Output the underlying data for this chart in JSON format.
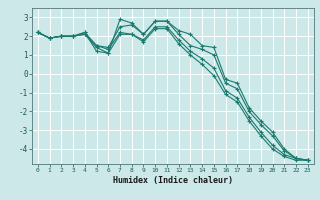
{
  "xlabel": "Humidex (Indice chaleur)",
  "bg_color": "#cce8e8",
  "line_color": "#1a7a6e",
  "grid_color": "#ffffff",
  "series": [
    [
      2.2,
      1.9,
      2.0,
      2.0,
      2.2,
      1.2,
      1.1,
      2.9,
      2.7,
      2.1,
      2.8,
      2.8,
      2.3,
      2.1,
      1.5,
      1.4,
      -0.3,
      -0.5,
      -1.8,
      -2.5,
      -3.1,
      -4.0,
      -4.5,
      -4.6
    ],
    [
      2.2,
      1.9,
      2.0,
      2.0,
      2.2,
      1.5,
      1.4,
      2.5,
      2.6,
      2.1,
      2.8,
      2.8,
      2.1,
      1.5,
      1.3,
      1.0,
      -0.5,
      -0.8,
      -2.0,
      -2.7,
      -3.3,
      -4.1,
      -4.5,
      -4.6
    ],
    [
      2.2,
      1.9,
      2.0,
      2.0,
      2.1,
      1.5,
      1.3,
      2.2,
      2.1,
      1.8,
      2.5,
      2.5,
      1.8,
      1.2,
      0.8,
      0.3,
      -0.9,
      -1.3,
      -2.3,
      -3.1,
      -3.8,
      -4.3,
      -4.5,
      -4.6
    ],
    [
      2.2,
      1.9,
      2.0,
      2.0,
      2.1,
      1.4,
      1.1,
      2.1,
      2.1,
      1.7,
      2.4,
      2.4,
      1.6,
      1.0,
      0.5,
      -0.1,
      -1.1,
      -1.5,
      -2.5,
      -3.3,
      -4.0,
      -4.4,
      -4.6,
      -4.6
    ]
  ],
  "xlim": [
    -0.5,
    23.5
  ],
  "ylim": [
    -4.8,
    3.5
  ],
  "yticks": [
    -4,
    -3,
    -2,
    -1,
    0,
    1,
    2,
    3
  ],
  "xticks": [
    0,
    1,
    2,
    3,
    4,
    5,
    6,
    7,
    8,
    9,
    10,
    11,
    12,
    13,
    14,
    15,
    16,
    17,
    18,
    19,
    20,
    21,
    22,
    23
  ],
  "tick_color": "#1a5a5a",
  "label_color": "#1a1a1a"
}
